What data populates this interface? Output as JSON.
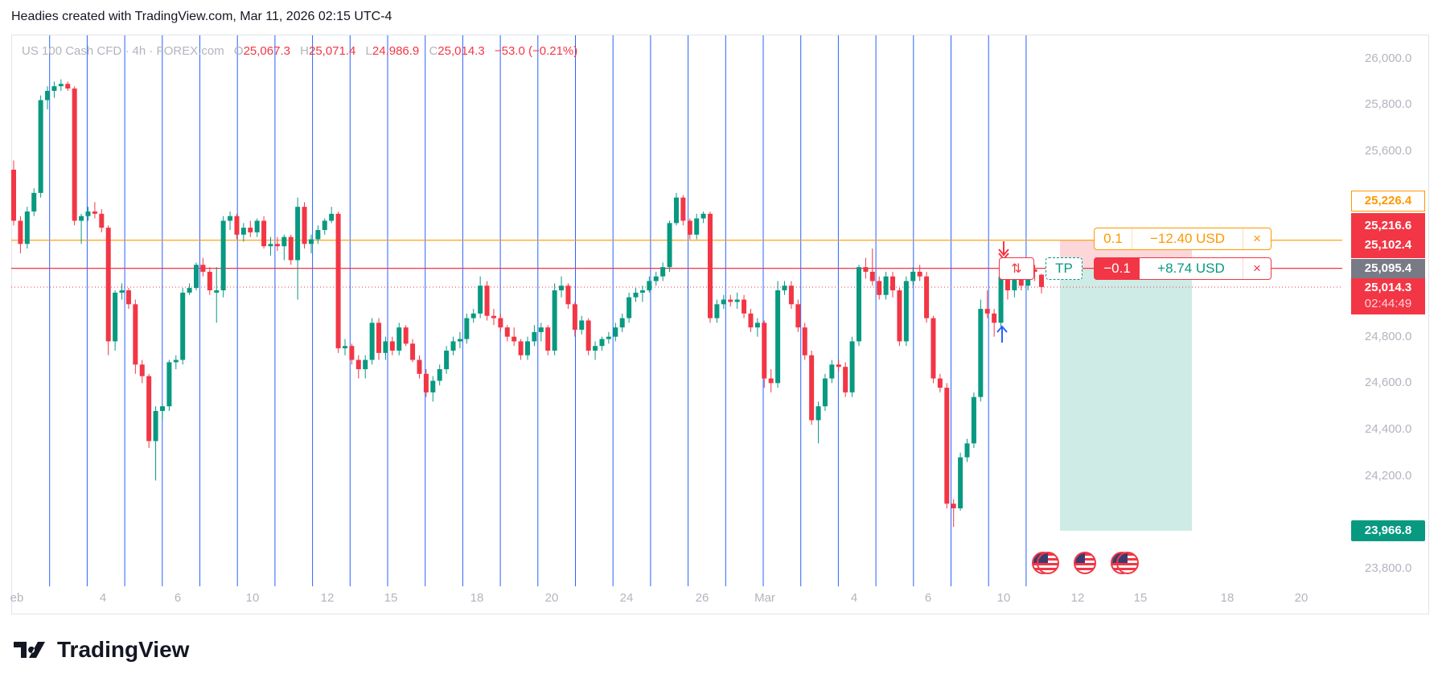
{
  "header": {
    "title": "Headies created with TradingView.com, Mar 11, 2026 02:15 UTC-4"
  },
  "legend": {
    "symbol": "US 100 Cash CFD · 4h · FOREX.com",
    "o_label": "O",
    "o": "25,067.3",
    "h_label": "H",
    "h": "25,071.4",
    "l_label": "L",
    "l": "24,986.9",
    "c_label": "C",
    "c": "25,014.3",
    "change": "−53.0 (−0.21%)"
  },
  "price_axis": {
    "ticks": [
      "26,000.0",
      "25,800.0",
      "25,600.0",
      "24,800.0",
      "24,600.0",
      "24,400.0",
      "24,200.0",
      "23,800.0"
    ],
    "tick_values": [
      26000,
      25800,
      25600,
      24800,
      24600,
      24400,
      24200,
      23800
    ],
    "labels": {
      "sl_target": "25,226.4",
      "sl_line": "25,216.6",
      "entry_line": "25,102.4",
      "position": "25,095.4",
      "last_price": "25,014.3",
      "countdown": "02:44:49",
      "take_profit": "23,966.8"
    }
  },
  "time_axis": {
    "labels": [
      "eb",
      "4",
      "6",
      "10",
      "12",
      "15",
      "18",
      "20",
      "24",
      "26",
      "Mar",
      "4",
      "6",
      "10",
      "12",
      "15",
      "18",
      "20"
    ]
  },
  "orders": {
    "stop": {
      "qty": "0.1",
      "pnl": "−12.40 USD",
      "close": "×"
    },
    "position": {
      "qty": "−0.1",
      "pnl": "+8.74 USD",
      "close": "×",
      "reverse": "⇅",
      "tp": "TP"
    }
  },
  "branding": {
    "logo_text": "TradingView",
    "logo_mark": "17"
  },
  "colors": {
    "up": "#089981",
    "down": "#f23645",
    "orange": "#ff9800",
    "session_line": "#2962ff",
    "gray": "#787b86"
  },
  "chart_data": {
    "type": "candlestick",
    "title": "US 100 Cash CFD · 4h · FOREX.com",
    "ylim": [
      23750,
      26080
    ],
    "horizontal_lines": {
      "stop_loss": 25216.6,
      "entry": 25095.4,
      "last": 25014.3,
      "take_profit": 23966.8
    },
    "ohlc": [
      [
        25520,
        25560,
        25280,
        25300
      ],
      [
        25300,
        25320,
        25160,
        25200
      ],
      [
        25200,
        25360,
        25180,
        25340
      ],
      [
        25340,
        25440,
        25320,
        25420
      ],
      [
        25420,
        25840,
        25400,
        25820
      ],
      [
        25820,
        25880,
        25780,
        25860
      ],
      [
        25860,
        25900,
        25830,
        25880
      ],
      [
        25880,
        25910,
        25860,
        25890
      ],
      [
        25890,
        25900,
        25860,
        25870
      ],
      [
        25870,
        25880,
        25280,
        25300
      ],
      [
        25300,
        25330,
        25200,
        25320
      ],
      [
        25320,
        25360,
        25300,
        25340
      ],
      [
        25340,
        25380,
        25310,
        25330
      ],
      [
        25330,
        25350,
        25250,
        25270
      ],
      [
        25270,
        25280,
        24720,
        24780
      ],
      [
        24780,
        25000,
        24740,
        24990
      ],
      [
        24990,
        25030,
        24960,
        25000
      ],
      [
        25000,
        25010,
        24920,
        24940
      ],
      [
        24940,
        24960,
        24640,
        24680
      ],
      [
        24680,
        24700,
        24600,
        24630
      ],
      [
        24630,
        24640,
        24320,
        24350
      ],
      [
        24350,
        24500,
        24180,
        24480
      ],
      [
        24480,
        24510,
        24440,
        24500
      ],
      [
        24500,
        24700,
        24480,
        24690
      ],
      [
        24690,
        24720,
        24660,
        24700
      ],
      [
        24700,
        25010,
        24680,
        24990
      ],
      [
        24990,
        25030,
        24980,
        25010
      ],
      [
        25010,
        25120,
        25000,
        25110
      ],
      [
        25110,
        25140,
        25060,
        25080
      ],
      [
        25080,
        25100,
        24980,
        25000
      ],
      [
        24990,
        25100,
        24860,
        25000
      ],
      [
        25000,
        25320,
        24970,
        25300
      ],
      [
        25300,
        25340,
        25260,
        25320
      ],
      [
        25320,
        25330,
        25220,
        25240
      ],
      [
        25240,
        25290,
        25210,
        25270
      ],
      [
        25270,
        25300,
        25230,
        25250
      ],
      [
        25250,
        25310,
        25230,
        25300
      ],
      [
        25300,
        25320,
        25180,
        25190
      ],
      [
        25190,
        25230,
        25150,
        25200
      ],
      [
        25200,
        25230,
        25170,
        25190
      ],
      [
        25190,
        25240,
        25130,
        25230
      ],
      [
        25230,
        25240,
        25110,
        25130
      ],
      [
        25130,
        25400,
        24960,
        25360
      ],
      [
        25360,
        25380,
        25180,
        25200
      ],
      [
        25200,
        25240,
        25160,
        25220
      ],
      [
        25220,
        25280,
        25200,
        25260
      ],
      [
        25260,
        25310,
        25240,
        25300
      ],
      [
        25300,
        25360,
        25290,
        25330
      ],
      [
        25330,
        25340,
        24730,
        24750
      ],
      [
        24750,
        24790,
        24720,
        24760
      ],
      [
        24760,
        24770,
        24680,
        24700
      ],
      [
        24700,
        24720,
        24620,
        24660
      ],
      [
        24660,
        24720,
        24620,
        24700
      ],
      [
        24700,
        24880,
        24680,
        24860
      ],
      [
        24860,
        24880,
        24700,
        24730
      ],
      [
        24730,
        24800,
        24700,
        24780
      ],
      [
        24780,
        24800,
        24720,
        24740
      ],
      [
        24740,
        24860,
        24720,
        24840
      ],
      [
        24840,
        24850,
        24760,
        24770
      ],
      [
        24770,
        24790,
        24690,
        24700
      ],
      [
        24700,
        24720,
        24620,
        24640
      ],
      [
        24640,
        24660,
        24540,
        24560
      ],
      [
        24560,
        24630,
        24520,
        24610
      ],
      [
        24610,
        24680,
        24590,
        24660
      ],
      [
        24660,
        24760,
        24640,
        24740
      ],
      [
        24740,
        24800,
        24720,
        24780
      ],
      [
        24780,
        24820,
        24750,
        24790
      ],
      [
        24790,
        24900,
        24770,
        24880
      ],
      [
        24880,
        24920,
        24860,
        24900
      ],
      [
        24900,
        25060,
        24880,
        25020
      ],
      [
        25020,
        25040,
        24870,
        24890
      ],
      [
        24890,
        24920,
        24850,
        24880
      ],
      [
        24880,
        24900,
        24820,
        24840
      ],
      [
        24840,
        24850,
        24780,
        24800
      ],
      [
        24800,
        24840,
        24760,
        24780
      ],
      [
        24780,
        24790,
        24700,
        24720
      ],
      [
        24720,
        24800,
        24700,
        24780
      ],
      [
        24780,
        24850,
        24760,
        24820
      ],
      [
        24820,
        24860,
        24780,
        24840
      ],
      [
        24840,
        24850,
        24720,
        24740
      ],
      [
        24740,
        25030,
        24720,
        25000
      ],
      [
        25000,
        25060,
        24970,
        25020
      ],
      [
        25020,
        25030,
        24920,
        24940
      ],
      [
        24940,
        24950,
        24800,
        24830
      ],
      [
        24830,
        24890,
        24810,
        24870
      ],
      [
        24870,
        24880,
        24720,
        24740
      ],
      [
        24740,
        24780,
        24700,
        24760
      ],
      [
        24760,
        24800,
        24740,
        24790
      ],
      [
        24790,
        24820,
        24770,
        24800
      ],
      [
        24800,
        24860,
        24780,
        24840
      ],
      [
        24840,
        24900,
        24820,
        24880
      ],
      [
        24880,
        24990,
        24860,
        24970
      ],
      [
        24970,
        25010,
        24950,
        24990
      ],
      [
        24990,
        25020,
        24950,
        25000
      ],
      [
        25000,
        25060,
        24990,
        25040
      ],
      [
        25040,
        25080,
        25020,
        25060
      ],
      [
        25060,
        25120,
        25040,
        25100
      ],
      [
        25100,
        25300,
        25080,
        25290
      ],
      [
        25290,
        25420,
        25280,
        25400
      ],
      [
        25400,
        25410,
        25280,
        25300
      ],
      [
        25300,
        25310,
        25220,
        25240
      ],
      [
        25240,
        25330,
        25220,
        25310
      ],
      [
        25310,
        25340,
        25290,
        25330
      ],
      [
        25330,
        25340,
        24860,
        24880
      ],
      [
        24880,
        24960,
        24860,
        24940
      ],
      [
        24940,
        24980,
        24920,
        24960
      ],
      [
        24960,
        24980,
        24930,
        24950
      ],
      [
        24950,
        24990,
        24920,
        24960
      ],
      [
        24960,
        24980,
        24880,
        24900
      ],
      [
        24900,
        24920,
        24820,
        24840
      ],
      [
        24840,
        24880,
        24800,
        24860
      ],
      [
        24860,
        24870,
        24580,
        24620
      ],
      [
        24620,
        24660,
        24560,
        24600
      ],
      [
        24600,
        25040,
        24580,
        25000
      ],
      [
        25000,
        25040,
        24980,
        25020
      ],
      [
        25020,
        25040,
        24920,
        24940
      ],
      [
        24940,
        24960,
        24820,
        24840
      ],
      [
        24840,
        24860,
        24700,
        24720
      ],
      [
        24720,
        24740,
        24420,
        24440
      ],
      [
        24440,
        24520,
        24340,
        24500
      ],
      [
        24500,
        24640,
        24480,
        24620
      ],
      [
        24620,
        24700,
        24600,
        24680
      ],
      [
        24680,
        24700,
        24650,
        24670
      ],
      [
        24670,
        24690,
        24540,
        24560
      ],
      [
        24560,
        24800,
        24540,
        24780
      ],
      [
        24780,
        25110,
        24760,
        25100
      ],
      [
        25100,
        25140,
        25050,
        25080
      ],
      [
        25080,
        25180,
        25020,
        25040
      ],
      [
        25040,
        25060,
        24960,
        24980
      ],
      [
        24980,
        25080,
        24960,
        25060
      ],
      [
        25060,
        25080,
        24970,
        25000
      ],
      [
        25000,
        25010,
        24760,
        24780
      ],
      [
        24780,
        25060,
        24760,
        25040
      ],
      [
        25040,
        25100,
        25020,
        25080
      ],
      [
        25080,
        25110,
        25040,
        25060
      ],
      [
        25060,
        25080,
        24860,
        24880
      ],
      [
        24880,
        24890,
        24600,
        24620
      ],
      [
        24620,
        24640,
        24560,
        24580
      ],
      [
        24580,
        24600,
        24060,
        24080
      ],
      [
        24080,
        24100,
        23980,
        24060
      ],
      [
        24060,
        24300,
        24050,
        24280
      ],
      [
        24280,
        24360,
        24260,
        24340
      ],
      [
        24340,
        24560,
        24320,
        24540
      ],
      [
        24540,
        24960,
        24520,
        24920
      ],
      [
        24920,
        25000,
        24880,
        24900
      ],
      [
        24900,
        24920,
        24800,
        24860
      ],
      [
        24860,
        25080,
        24840,
        25060
      ],
      [
        25060,
        25110,
        24960,
        25000
      ],
      [
        25000,
        25110,
        24970,
        25090
      ],
      [
        25090,
        25140,
        25000,
        25020
      ],
      [
        25020,
        25110,
        25000,
        25090
      ],
      [
        25090,
        25110,
        25040,
        25080
      ],
      [
        25067.3,
        25071.4,
        24986.9,
        25014.3
      ]
    ]
  }
}
